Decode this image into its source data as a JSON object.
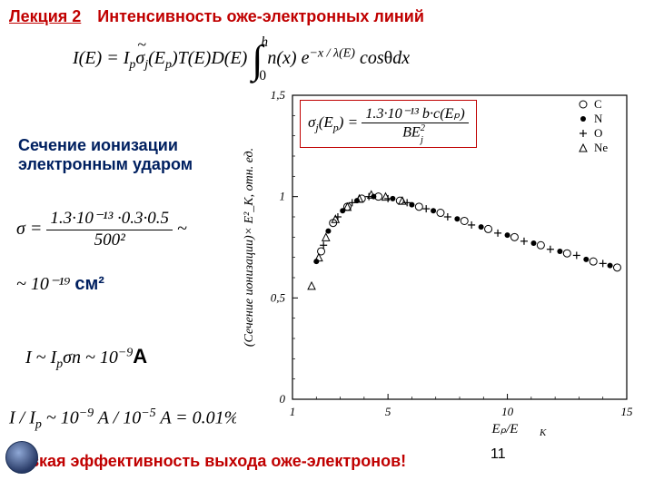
{
  "header": {
    "lecture": "Лекция 2",
    "title": "Интенсивность оже-электронных линий"
  },
  "sub_heading": "Сечение ионизации электронным ударом",
  "eq_sigma": {
    "numerator": "1.3·10⁻¹³ ·0.3·0.5",
    "denominator": "500²",
    "approx": "~ 10⁻¹⁹",
    "unit": "см²"
  },
  "eq_ic": {
    "text": "I ~ I",
    "sub": "p",
    "rest": "σn ~ 10⁻⁹",
    "unit": "А"
  },
  "eq_ratio": "I / Iₚ ~ 10⁻⁹ A / 10⁻⁵ A = 0.01%",
  "bottom_note": "Низкая эффективность выхода оже-электронов!",
  "page_number": "11",
  "chart": {
    "type": "scatter",
    "xlabel": "Eₚ/E_K",
    "ylabel": "(Сечение ионизации)× E²_K, отн. ед.",
    "xlim": [
      1,
      15
    ],
    "ylim": [
      0,
      1.5
    ],
    "xticks": [
      1,
      5,
      10,
      15
    ],
    "yticks": [
      0,
      0.5,
      1.0,
      1.5
    ],
    "background_color": "#ffffff",
    "axis_color": "#000000",
    "legend": [
      {
        "marker": "circle",
        "label": "C"
      },
      {
        "marker": "dot",
        "label": "N"
      },
      {
        "marker": "plus",
        "label": "O"
      },
      {
        "marker": "triangle",
        "label": "Ne"
      }
    ],
    "formula": {
      "lhs": "σⱼ(Eₚ) =",
      "num": "1.3·10⁻¹³ b·c(Eₚ)",
      "den": "BE²ⱼ"
    },
    "marker_colors": {
      "circle": "#000000",
      "dot": "#000000",
      "plus": "#000000",
      "triangle": "#000000"
    },
    "points": {
      "circle": [
        [
          2.2,
          0.73
        ],
        [
          2.7,
          0.87
        ],
        [
          3.3,
          0.95
        ],
        [
          3.9,
          0.99
        ],
        [
          4.6,
          1.0
        ],
        [
          5.5,
          0.98
        ],
        [
          6.3,
          0.95
        ],
        [
          7.2,
          0.92
        ],
        [
          8.2,
          0.88
        ],
        [
          9.2,
          0.84
        ],
        [
          10.3,
          0.8
        ],
        [
          11.4,
          0.76
        ],
        [
          12.5,
          0.72
        ],
        [
          13.6,
          0.68
        ],
        [
          14.6,
          0.65
        ]
      ],
      "dot": [
        [
          2.0,
          0.68
        ],
        [
          2.5,
          0.83
        ],
        [
          3.1,
          0.93
        ],
        [
          3.7,
          0.98
        ],
        [
          4.4,
          1.0
        ],
        [
          5.2,
          0.99
        ],
        [
          6.0,
          0.96
        ],
        [
          6.9,
          0.93
        ],
        [
          7.9,
          0.89
        ],
        [
          8.9,
          0.85
        ],
        [
          10.0,
          0.81
        ],
        [
          11.1,
          0.77
        ],
        [
          12.2,
          0.73
        ],
        [
          13.3,
          0.69
        ],
        [
          14.3,
          0.66
        ]
      ],
      "plus": [
        [
          2.3,
          0.76
        ],
        [
          2.9,
          0.9
        ],
        [
          3.5,
          0.97
        ],
        [
          4.2,
          1.0
        ],
        [
          5.0,
          0.99
        ],
        [
          5.8,
          0.97
        ],
        [
          6.6,
          0.94
        ],
        [
          7.5,
          0.9
        ],
        [
          8.5,
          0.86
        ],
        [
          9.6,
          0.82
        ],
        [
          10.7,
          0.78
        ],
        [
          11.8,
          0.74
        ],
        [
          12.9,
          0.71
        ],
        [
          14.0,
          0.67
        ]
      ],
      "triangle": [
        [
          1.8,
          0.56
        ],
        [
          2.1,
          0.7
        ],
        [
          2.4,
          0.8
        ],
        [
          2.8,
          0.89
        ],
        [
          3.3,
          0.95
        ],
        [
          3.8,
          0.99
        ],
        [
          4.3,
          1.01
        ],
        [
          4.9,
          1.0
        ],
        [
          5.6,
          0.98
        ]
      ]
    }
  }
}
